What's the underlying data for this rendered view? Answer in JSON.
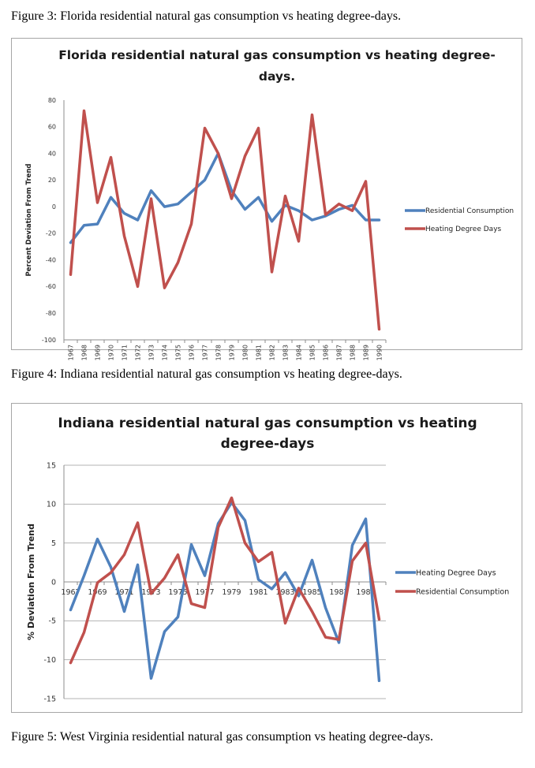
{
  "captions": {
    "fig3": "Figure 3: Florida residential natural gas consumption vs heating degree-days.",
    "fig4": "Figure 4: Indiana residential natural gas consumption vs heating degree-days.",
    "fig5": "Figure 5: West Virginia residential natural gas consumption vs heating degree-days."
  },
  "chart_data": [
    {
      "type": "line",
      "title_lines": [
        "Florida residential natural gas consumption vs heating degree-",
        "days."
      ],
      "xlabel": "",
      "ylabel": "Percent Deviation From Trend",
      "ylim": [
        -100,
        80
      ],
      "yticks": [
        80,
        60,
        40,
        20,
        0,
        -20,
        -40,
        -60,
        -80,
        -100
      ],
      "categories": [
        "1967",
        "1968",
        "1969",
        "1970",
        "1971",
        "1972",
        "1973",
        "1974",
        "1975",
        "1976",
        "1977",
        "1978",
        "1979",
        "1980",
        "1981",
        "1982",
        "1983",
        "1984",
        "1985",
        "1986",
        "1987",
        "1988",
        "1989",
        "1990"
      ],
      "grid": false,
      "legend": "right",
      "series": [
        {
          "name": "Residential Consumption",
          "color": "#4f81bd",
          "values": [
            -27,
            -14,
            -13,
            7,
            -5,
            -10,
            12,
            0,
            2,
            11,
            20,
            40,
            12,
            -2,
            7,
            -11,
            1,
            -3,
            -10,
            -7,
            -2,
            1,
            -10,
            -10
          ]
        },
        {
          "name": "Heating Degree Days",
          "color": "#c0504d",
          "values": [
            -51,
            72,
            3,
            37,
            -22,
            -60,
            6,
            -61,
            -42,
            -13,
            59,
            40,
            6,
            38,
            59,
            -49,
            8,
            -26,
            69,
            -6,
            2,
            -3,
            19,
            -92
          ]
        }
      ]
    },
    {
      "type": "line",
      "title_lines": [
        "Indiana residential natural gas consumption vs heating",
        "degree-days"
      ],
      "xlabel": "",
      "ylabel": "% Deviation From Trend",
      "ylim": [
        -15,
        15
      ],
      "yticks": [
        15,
        10,
        5,
        0,
        -5,
        -10,
        -15
      ],
      "categories": [
        "1967",
        "1968",
        "1969",
        "1970",
        "1971",
        "1972",
        "1973",
        "1974",
        "1975",
        "1976",
        "1977",
        "1978",
        "1979",
        "1980",
        "1981",
        "1982",
        "1983",
        "1984",
        "1985",
        "1986",
        "1987",
        "1988",
        "1989",
        "1990"
      ],
      "tick_labels": {
        "1967": "1967",
        "1969": "1969",
        "1971": "1971",
        "1973": "1973",
        "1975": "1975",
        "1977": "1977",
        "1979": "1979",
        "1981": "1981",
        "1983": "1983",
        "1985": "1985",
        "1987": "1987",
        "1989": "1989"
      },
      "grid": true,
      "legend": "right",
      "series": [
        {
          "name": "Heating Degree Days",
          "color": "#4f81bd",
          "values": [
            -3.6,
            0.8,
            5.5,
            1.9,
            -3.8,
            2.2,
            -12.4,
            -6.4,
            -4.5,
            4.8,
            0.8,
            7.5,
            10.2,
            7.9,
            0.3,
            -0.9,
            1.2,
            -1.8,
            2.8,
            -3.3,
            -7.8,
            4.7,
            8.1,
            -12.7
          ]
        },
        {
          "name": "Residential Consumption",
          "color": "#c0504d",
          "values": [
            -10.4,
            -6.5,
            -0.1,
            1.2,
            3.5,
            7.6,
            -1.5,
            0.5,
            3.5,
            -2.8,
            -3.3,
            7.0,
            10.8,
            5.0,
            2.6,
            3.8,
            -5.3,
            -0.8,
            -3.8,
            -7.1,
            -7.4,
            2.7,
            5.0,
            -4.8
          ]
        }
      ]
    }
  ]
}
